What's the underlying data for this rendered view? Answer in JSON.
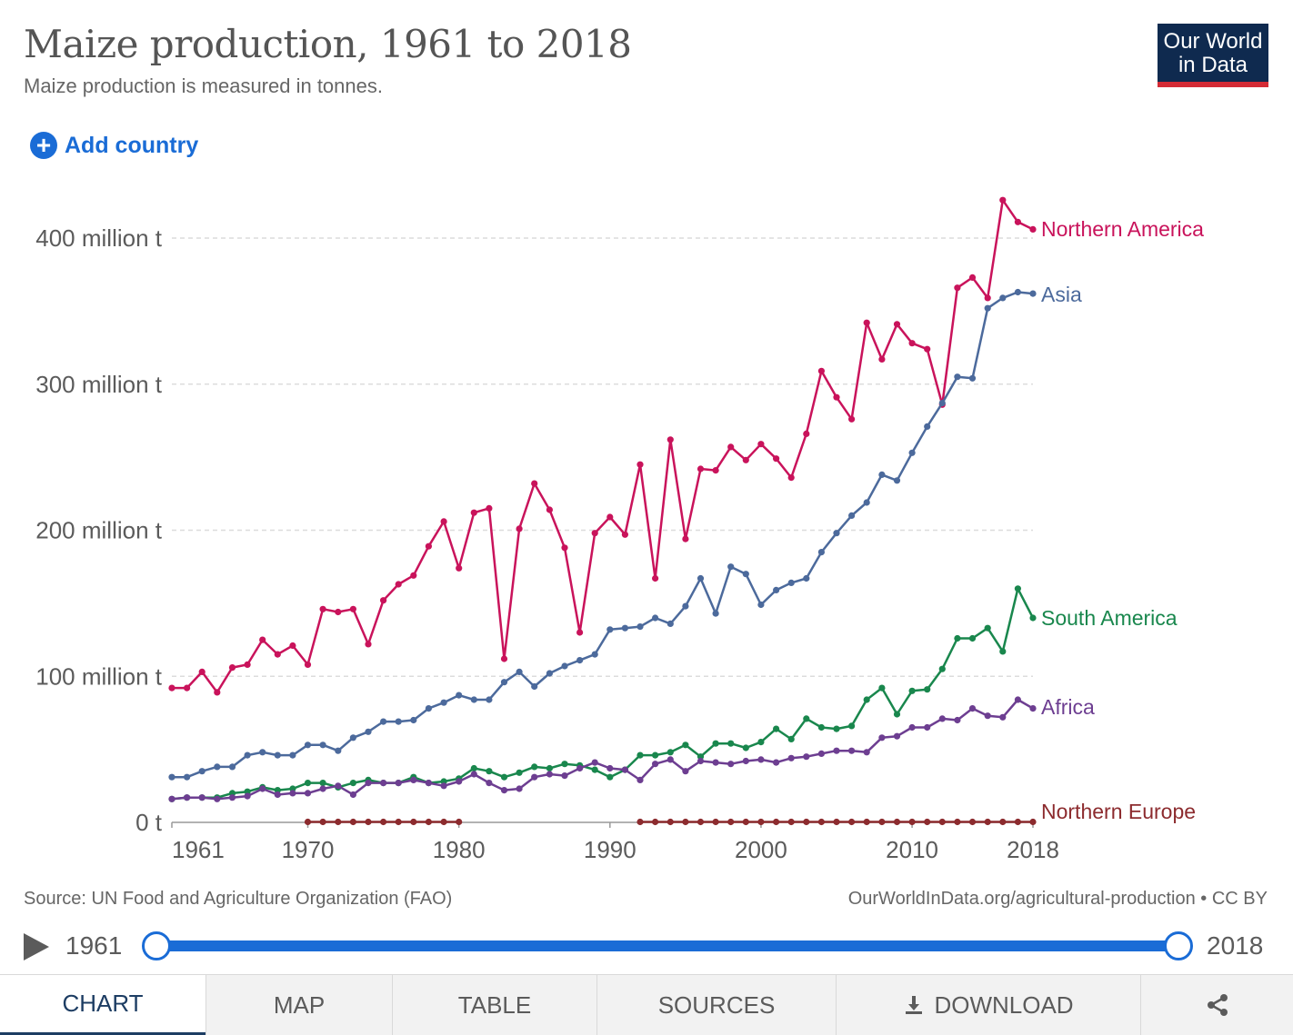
{
  "header": {
    "title": "Maize production, 1961 to 2018",
    "subtitle": "Maize production is measured in tonnes.",
    "logo_line1": "Our World",
    "logo_line2": "in Data"
  },
  "controls": {
    "add_country": "Add country"
  },
  "footer": {
    "source": "Source: UN Food and Agriculture Organization (FAO)",
    "url": "OurWorldInData.org/agricultural-production • CC BY"
  },
  "timeline": {
    "start": "1961",
    "end": "2018"
  },
  "tabs": {
    "chart": "CHART",
    "map": "MAP",
    "table": "TABLE",
    "sources": "SOURCES",
    "download": "DOWNLOAD"
  },
  "chart_data": {
    "type": "line",
    "title": "Maize production, 1961 to 2018",
    "xlim": [
      1961,
      2018
    ],
    "ylim": [
      0,
      430000000
    ],
    "y_ticks": [
      0,
      100000000,
      200000000,
      300000000,
      400000000
    ],
    "y_tick_labels": [
      "0 t",
      "100 million t",
      "200 million t",
      "300 million t",
      "400 million t"
    ],
    "x_ticks": [
      1961,
      1970,
      1980,
      1990,
      2000,
      2010,
      2018
    ],
    "x_tick_labels": [
      "1961",
      "1970",
      "1980",
      "1990",
      "2000",
      "2010",
      "2018"
    ],
    "grid": "horizontal dashed",
    "legend": "labels at line ends (right)",
    "series": [
      {
        "name": "Northern America",
        "color": "#c9135b",
        "x": [
          1961,
          1962,
          1963,
          1964,
          1965,
          1966,
          1967,
          1968,
          1969,
          1970,
          1971,
          1972,
          1973,
          1974,
          1975,
          1976,
          1977,
          1978,
          1979,
          1980,
          1981,
          1982,
          1983,
          1984,
          1985,
          1986,
          1987,
          1988,
          1989,
          1990,
          1991,
          1992,
          1993,
          1994,
          1995,
          1996,
          1997,
          1998,
          1999,
          2000,
          2001,
          2002,
          2003,
          2004,
          2005,
          2006,
          2007,
          2008,
          2009,
          2010,
          2011,
          2012,
          2013,
          2014,
          2015,
          2016,
          2017,
          2018
        ],
        "values": [
          92,
          92,
          103,
          89,
          106,
          108,
          125,
          115,
          121,
          108,
          146,
          144,
          146,
          122,
          152,
          163,
          169,
          189,
          206,
          174,
          212,
          215,
          112,
          201,
          232,
          214,
          188,
          130,
          198,
          209,
          197,
          245,
          167,
          262,
          194,
          242,
          241,
          257,
          248,
          259,
          249,
          236,
          266,
          309,
          291,
          276,
          342,
          317,
          341,
          328,
          324,
          286,
          366,
          373,
          359,
          426,
          411,
          406
        ],
        "unit_multiplier": 1000000
      },
      {
        "name": "Asia",
        "color": "#4c6a9c",
        "x": [
          1961,
          1962,
          1963,
          1964,
          1965,
          1966,
          1967,
          1968,
          1969,
          1970,
          1971,
          1972,
          1973,
          1974,
          1975,
          1976,
          1977,
          1978,
          1979,
          1980,
          1981,
          1982,
          1983,
          1984,
          1985,
          1986,
          1987,
          1988,
          1989,
          1990,
          1991,
          1992,
          1993,
          1994,
          1995,
          1996,
          1997,
          1998,
          1999,
          2000,
          2001,
          2002,
          2003,
          2004,
          2005,
          2006,
          2007,
          2008,
          2009,
          2010,
          2011,
          2012,
          2013,
          2014,
          2015,
          2016,
          2017,
          2018
        ],
        "values": [
          31,
          31,
          35,
          38,
          38,
          46,
          48,
          46,
          46,
          53,
          53,
          49,
          58,
          62,
          69,
          69,
          70,
          78,
          82,
          87,
          84,
          84,
          96,
          103,
          93,
          102,
          107,
          111,
          115,
          132,
          133,
          134,
          140,
          136,
          148,
          167,
          143,
          175,
          170,
          149,
          159,
          164,
          167,
          185,
          198,
          210,
          219,
          238,
          234,
          253,
          271,
          287,
          305,
          304,
          352,
          359,
          363,
          362
        ],
        "unit_multiplier": 1000000
      },
      {
        "name": "South America",
        "color": "#19874d",
        "x": [
          1961,
          1962,
          1963,
          1964,
          1965,
          1966,
          1967,
          1968,
          1969,
          1970,
          1971,
          1972,
          1973,
          1974,
          1975,
          1976,
          1977,
          1978,
          1979,
          1980,
          1981,
          1982,
          1983,
          1984,
          1985,
          1986,
          1987,
          1988,
          1989,
          1990,
          1991,
          1992,
          1993,
          1994,
          1995,
          1996,
          1997,
          1998,
          1999,
          2000,
          2001,
          2002,
          2003,
          2004,
          2005,
          2006,
          2007,
          2008,
          2009,
          2010,
          2011,
          2012,
          2013,
          2014,
          2015,
          2016,
          2017,
          2018
        ],
        "values": [
          16,
          17,
          17,
          17,
          20,
          21,
          24,
          22,
          23,
          27,
          27,
          24,
          27,
          29,
          27,
          27,
          31,
          27,
          28,
          30,
          37,
          35,
          31,
          34,
          38,
          37,
          40,
          39,
          36,
          31,
          36,
          46,
          46,
          48,
          53,
          45,
          54,
          54,
          51,
          55,
          64,
          57,
          71,
          65,
          64,
          66,
          84,
          92,
          74,
          90,
          91,
          105,
          126,
          126,
          133,
          117,
          160,
          140
        ],
        "unit_multiplier": 1000000
      },
      {
        "name": "Africa",
        "color": "#6d3e91",
        "x": [
          1961,
          1962,
          1963,
          1964,
          1965,
          1966,
          1967,
          1968,
          1969,
          1970,
          1971,
          1972,
          1973,
          1974,
          1975,
          1976,
          1977,
          1978,
          1979,
          1980,
          1981,
          1982,
          1983,
          1984,
          1985,
          1986,
          1987,
          1988,
          1989,
          1990,
          1991,
          1992,
          1993,
          1994,
          1995,
          1996,
          1997,
          1998,
          1999,
          2000,
          2001,
          2002,
          2003,
          2004,
          2005,
          2006,
          2007,
          2008,
          2009,
          2010,
          2011,
          2012,
          2013,
          2014,
          2015,
          2016,
          2017,
          2018
        ],
        "values": [
          16,
          17,
          17,
          16,
          17,
          18,
          23,
          19,
          20,
          20,
          23,
          25,
          19,
          27,
          27,
          27,
          29,
          27,
          25,
          28,
          33,
          27,
          22,
          23,
          31,
          33,
          32,
          37,
          41,
          37,
          36,
          29,
          40,
          43,
          35,
          42,
          41,
          40,
          42,
          43,
          41,
          44,
          45,
          47,
          49,
          49,
          48,
          58,
          59,
          65,
          65,
          71,
          70,
          78,
          73,
          72,
          84,
          78
        ],
        "unit_multiplier": 1000000
      },
      {
        "name": "Northern Europe",
        "color": "#8c2b2e",
        "x": [
          1970,
          1971,
          1972,
          1973,
          1974,
          1975,
          1976,
          1977,
          1978,
          1979,
          1980,
          1992,
          1993,
          1994,
          1995,
          1996,
          1997,
          1998,
          1999,
          2000,
          2001,
          2002,
          2003,
          2004,
          2005,
          2006,
          2007,
          2008,
          2009,
          2010,
          2011,
          2012,
          2013,
          2014,
          2015,
          2016,
          2017,
          2018
        ],
        "values": [
          0.3,
          0.3,
          0.3,
          0.3,
          0.3,
          0.3,
          0.3,
          0.3,
          0.3,
          0.3,
          0.3,
          0.3,
          0.3,
          0.3,
          0.3,
          0.3,
          0.3,
          0.3,
          0.3,
          0.3,
          0.3,
          0.3,
          0.3,
          0.3,
          0.3,
          0.3,
          0.3,
          0.3,
          0.3,
          0.3,
          0.3,
          0.3,
          0.3,
          0.3,
          0.3,
          0.3,
          0.3,
          0.3
        ],
        "unit_multiplier": 1000000
      }
    ]
  }
}
